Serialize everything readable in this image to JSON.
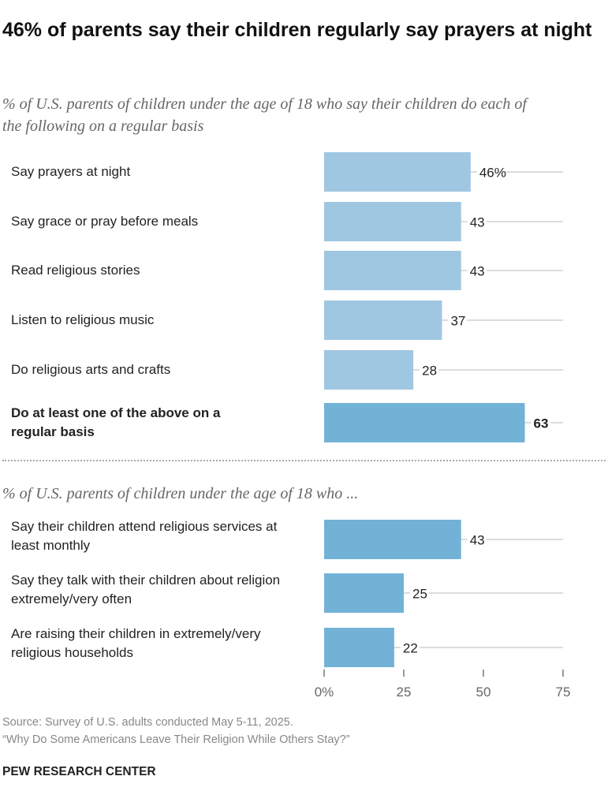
{
  "title": "46% of parents say their children regularly say prayers at night",
  "chart_data": [
    {
      "type": "bar",
      "subtitle": "% of U.S. parents of children under the age of 18 who say their children do each of the following on a regular basis",
      "categories": [
        "Say prayers at night",
        "Say grace or pray before meals",
        "Read religious stories",
        "Listen to religious music",
        "Do religious arts and crafts",
        "Do at least one of the above on a regular basis"
      ],
      "values": [
        46,
        43,
        43,
        37,
        28,
        63
      ],
      "data_labels": [
        "46%",
        "43",
        "43",
        "37",
        "28",
        "63"
      ],
      "highlight": [
        false,
        false,
        false,
        false,
        false,
        true
      ],
      "xlim": [
        0,
        75
      ]
    },
    {
      "type": "bar",
      "subtitle": "% of U.S. parents of children under the age of 18 who ...",
      "categories": [
        "Say their children attend religious services at least monthly",
        "Say they talk with their children about religion extremely/very often",
        "Are raising their children in extremely/very religious households"
      ],
      "values": [
        43,
        25,
        22
      ],
      "data_labels": [
        "43",
        "25",
        "22"
      ],
      "xlim": [
        0,
        75
      ],
      "xticks": [
        0,
        25,
        50,
        75
      ],
      "xtick_labels": [
        "0%",
        "25",
        "50",
        "75"
      ]
    }
  ],
  "colors": {
    "light_bar": "#a0c7e1",
    "dark_bar": "#72b2d6",
    "guide": "#c8c8c8"
  },
  "source": "Source: Survey of U.S. adults conducted May 5-11, 2025.",
  "report": "“Why Do Some Americans Leave Their Religion While Others Stay?”",
  "brand": "PEW RESEARCH CENTER"
}
